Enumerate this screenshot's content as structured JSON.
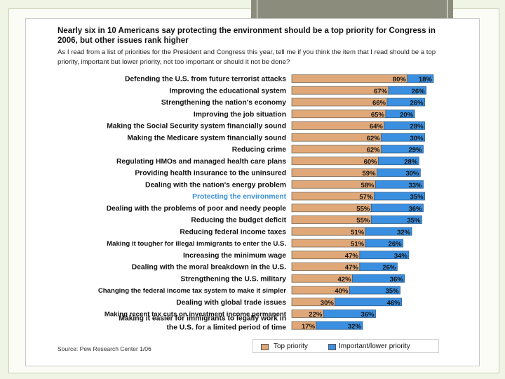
{
  "title": "Nearly six in 10 Americans say protecting the environment should be a top priority for Congress in 2006, but other issues rank higher",
  "question": "As I read from a list of priorities for the President and Congress this year, tell me if you think the item that I read should be a top priority, important but lower priority, not too important or should it not be done?",
  "source": "Source: Pew Research Center 1/06",
  "colors": {
    "top_priority": "#e0a878",
    "important_lower": "#3a8fe0",
    "highlight_label": "#3a8fd8",
    "label": "#111111"
  },
  "legend": [
    {
      "label": "Top priority",
      "color": "#e0a878"
    },
    {
      "label": "Important/lower priority",
      "color": "#3a8fe0"
    }
  ],
  "chart_data": {
    "type": "bar",
    "orientation": "horizontal",
    "stacked": true,
    "highlight_category": "Protecting the environment",
    "categories": [
      "Defending the U.S. from future terrorist attacks",
      "Improving the educational system",
      "Strengthening the nation's economy",
      "Improving the job situation",
      "Making the Social Security system financially sound",
      "Making the Medicare system financially sound",
      "Reducing crime",
      "Regulating HMOs and managed health care plans",
      "Providing health insurance to the uninsured",
      "Dealing with the nation's energy problem",
      "Protecting the environment",
      "Dealing with the problems of poor and needy people",
      "Reducing the budget deficit",
      "Reducing federal income taxes",
      "Making it tougher for illegal immigrants to enter the U.S.",
      "Increasing the minimum wage",
      "Dealing with the moral breakdown in the U.S.",
      "Strengthening the U.S. military",
      "Changing the federal income tax system to make it simpler",
      "Dealing with global trade issues",
      "Making recent tax cuts on investment income permanent",
      "Making it easier for immigrants to legally work in the U.S. for a limited period of time"
    ],
    "series": [
      {
        "name": "Top priority",
        "values": [
          80,
          67,
          66,
          65,
          64,
          62,
          62,
          60,
          59,
          58,
          57,
          55,
          55,
          51,
          51,
          47,
          47,
          42,
          40,
          30,
          22,
          17
        ]
      },
      {
        "name": "Important/lower priority",
        "values": [
          18,
          26,
          26,
          20,
          28,
          30,
          29,
          28,
          30,
          33,
          35,
          36,
          35,
          32,
          26,
          34,
          26,
          36,
          35,
          46,
          36,
          32
        ]
      }
    ],
    "value_suffix": "%",
    "xlim": [
      0,
      100
    ]
  }
}
